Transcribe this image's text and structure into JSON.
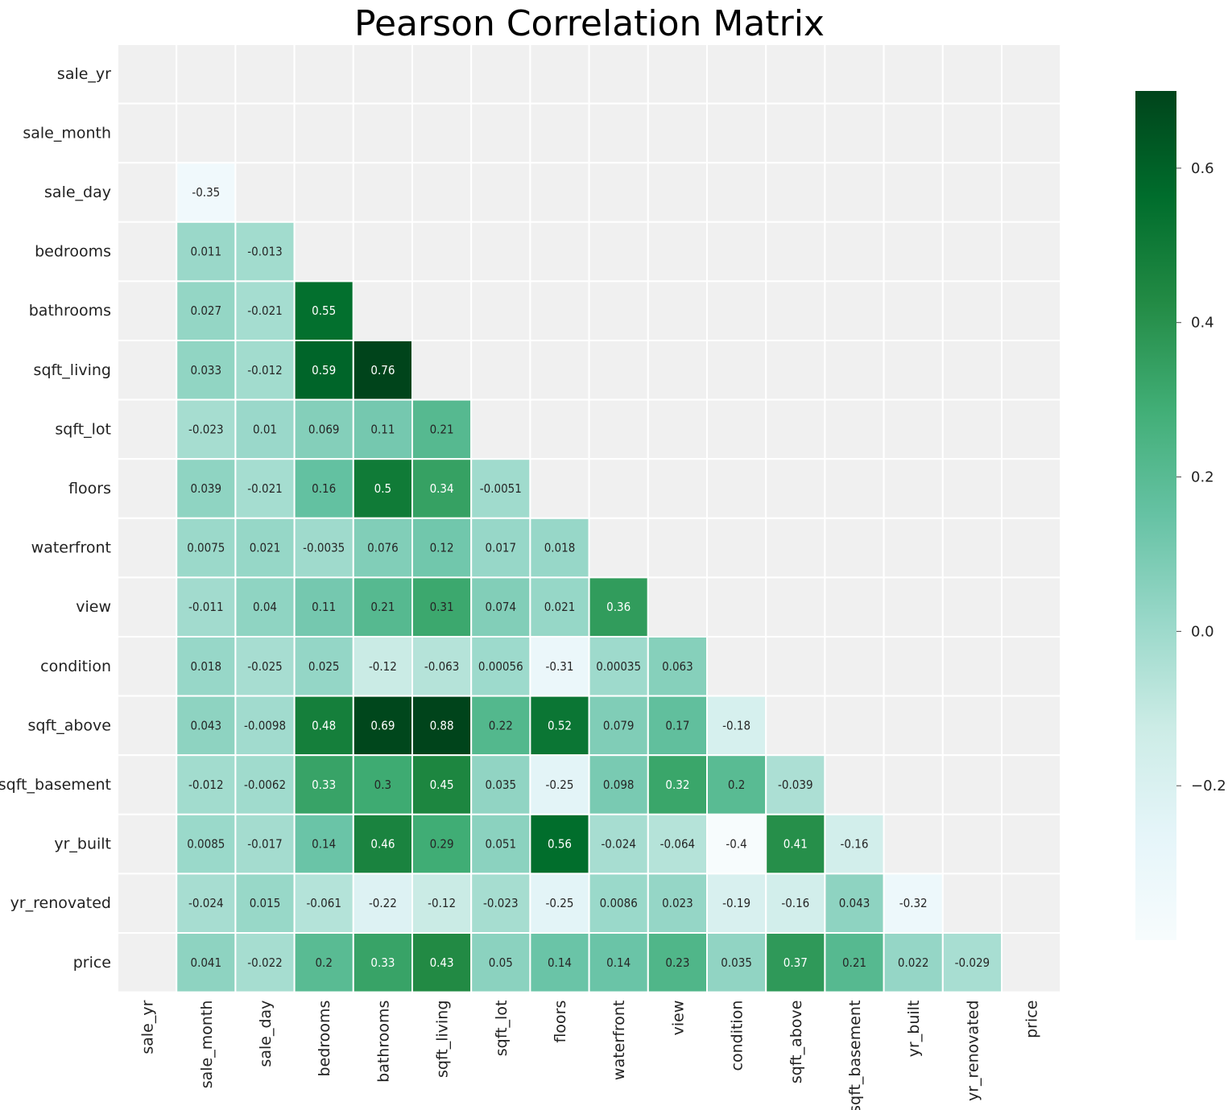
{
  "chart_data": {
    "type": "heatmap",
    "title": "Pearson Correlation Matrix",
    "xlabel": "",
    "ylabel": "",
    "labels": [
      "sale_yr",
      "sale_month",
      "sale_day",
      "bedrooms",
      "bathrooms",
      "sqft_living",
      "sqft_lot",
      "floors",
      "waterfront",
      "view",
      "condition",
      "sqft_above",
      "sqft_basement",
      "yr_built",
      "yr_renovated",
      "price"
    ],
    "mask": "upper-triangle-including-diagonal",
    "color_scale": "BuGn",
    "colorbar": {
      "range": [
        -0.4,
        0.7
      ],
      "ticks": [
        {
          "value": 0.6,
          "label": "0.6"
        },
        {
          "value": 0.4,
          "label": "0.4"
        },
        {
          "value": 0.2,
          "label": "0.2"
        },
        {
          "value": 0.0,
          "label": "0.0"
        },
        {
          "value": -0.2,
          "label": "−0.2"
        }
      ]
    },
    "rows": [
      {
        "label": "sale_yr",
        "values": []
      },
      {
        "label": "sale_month",
        "values": []
      },
      {
        "label": "sale_day",
        "values": [
          null,
          -0.35
        ]
      },
      {
        "label": "bedrooms",
        "values": [
          null,
          0.011,
          -0.013
        ]
      },
      {
        "label": "bathrooms",
        "values": [
          null,
          0.027,
          -0.021,
          0.55
        ]
      },
      {
        "label": "sqft_living",
        "values": [
          null,
          0.033,
          -0.012,
          0.59,
          0.76
        ]
      },
      {
        "label": "sqft_lot",
        "values": [
          null,
          -0.023,
          0.01,
          0.069,
          0.11,
          0.21
        ]
      },
      {
        "label": "floors",
        "values": [
          null,
          0.039,
          -0.021,
          0.16,
          0.5,
          0.34,
          -0.0051
        ]
      },
      {
        "label": "waterfront",
        "values": [
          null,
          0.0075,
          0.021,
          -0.0035,
          0.076,
          0.12,
          0.017,
          0.018
        ]
      },
      {
        "label": "view",
        "values": [
          null,
          -0.011,
          0.04,
          0.11,
          0.21,
          0.31,
          0.074,
          0.021,
          0.36
        ]
      },
      {
        "label": "condition",
        "values": [
          null,
          0.018,
          -0.025,
          0.025,
          -0.12,
          -0.063,
          0.00056,
          -0.31,
          0.00035,
          0.063
        ]
      },
      {
        "label": "sqft_above",
        "values": [
          null,
          0.043,
          -0.0098,
          0.48,
          0.69,
          0.88,
          0.22,
          0.52,
          0.079,
          0.17,
          -0.18
        ]
      },
      {
        "label": "sqft_basement",
        "values": [
          null,
          -0.012,
          -0.0062,
          0.33,
          0.3,
          0.45,
          0.035,
          -0.25,
          0.098,
          0.32,
          0.2,
          -0.039
        ]
      },
      {
        "label": "yr_built",
        "values": [
          null,
          0.0085,
          -0.017,
          0.14,
          0.46,
          0.29,
          0.051,
          0.56,
          -0.024,
          -0.064,
          -0.4,
          0.41,
          -0.16
        ]
      },
      {
        "label": "yr_renovated",
        "values": [
          null,
          -0.024,
          0.015,
          -0.061,
          -0.22,
          -0.12,
          -0.023,
          -0.25,
          0.0086,
          0.023,
          -0.19,
          -0.16,
          0.043,
          -0.32
        ]
      },
      {
        "label": "price",
        "values": [
          null,
          0.041,
          -0.022,
          0.2,
          0.33,
          0.43,
          0.05,
          0.14,
          0.14,
          0.23,
          0.035,
          0.37,
          0.21,
          0.022,
          -0.029
        ]
      }
    ],
    "colors": {
      "masked_cell": "#f0f0f0",
      "grid_line": "#ffffff",
      "text_dark": "#262626",
      "text_light": "#ffffff"
    }
  }
}
